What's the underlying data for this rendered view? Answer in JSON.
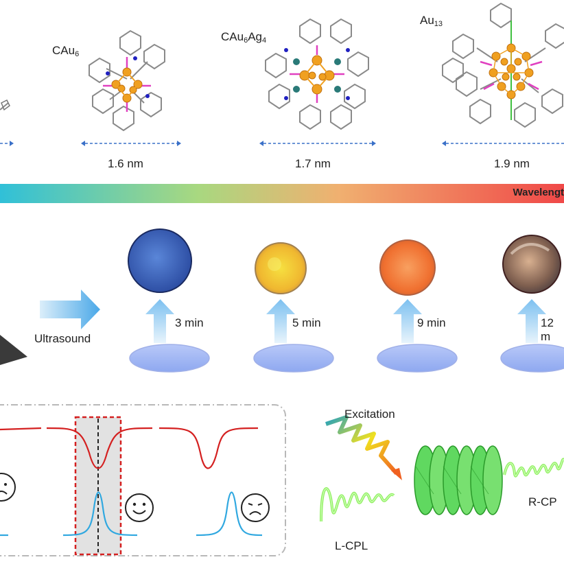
{
  "clusters": [
    {
      "name_base": "CAu",
      "name_sub": "6",
      "name_tail": "",
      "name_sub2": "",
      "size": "1.6 nm"
    },
    {
      "name_base": "CAu",
      "name_sub": "6",
      "name_tail": "Ag",
      "name_sub2": "4",
      "size": "1.7 nm"
    },
    {
      "name_base": "Au",
      "name_sub": "13",
      "name_tail": "",
      "name_sub2": "",
      "size": "1.9 nm"
    }
  ],
  "wavelength_label": "Wavelengt",
  "process": {
    "arrow_label": "Ultrasound",
    "times": [
      "3 min",
      "5 min",
      "9 min",
      "12 m"
    ]
  },
  "cpl": {
    "excitation": "Excitation",
    "left_label": "L-CPL",
    "right_label": "R-CP"
  },
  "colors": {
    "gold": "#f0a020",
    "phosphorus": "#e040c0",
    "nitrogen": "#2020c0",
    "reflect_curve": "#d42020",
    "emit_curve": "#30a8e0",
    "helix": "#90ee60"
  },
  "icons": [
    "sad-face-icon",
    "happy-face-icon",
    "sad-face-icon"
  ]
}
